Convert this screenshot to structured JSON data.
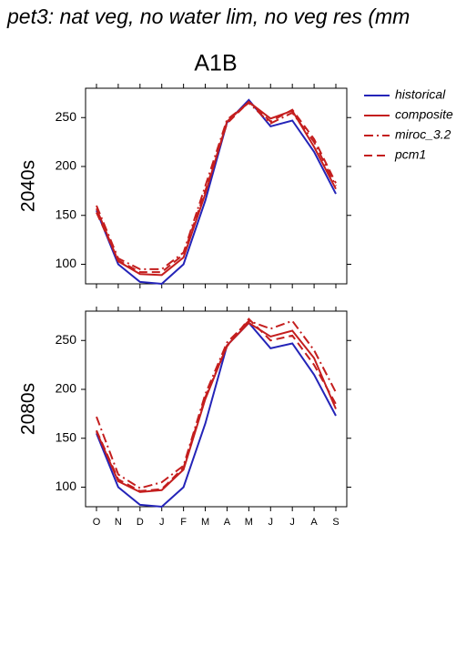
{
  "chart_data": [
    {
      "type": "line",
      "title": "pet3: nat veg, no water lim, no veg res (mm",
      "subtitle": "A1B",
      "ylabel": "2040s",
      "categories": [
        null,
        null,
        null,
        null,
        null,
        null,
        null,
        null,
        null,
        null,
        null,
        null
      ],
      "ylim": [
        80,
        280
      ],
      "yticks": [
        100,
        150,
        200,
        250
      ],
      "series": [
        {
          "name": "historical",
          "color": "#2424b8",
          "dash": "solid",
          "values": [
            155,
            100,
            82,
            80,
            100,
            165,
            245,
            268,
            241,
            247,
            215,
            172
          ]
        },
        {
          "name": "composite",
          "color": "#c41e1e",
          "dash": "solid",
          "values": [
            157,
            103,
            90,
            89,
            107,
            172,
            246,
            266,
            249,
            257,
            220,
            177
          ]
        },
        {
          "name": "miroc_3.2",
          "color": "#c41e1e",
          "dash": "dashdot",
          "values": [
            160,
            106,
            95,
            95,
            112,
            180,
            248,
            265,
            244,
            255,
            225,
            180
          ]
        },
        {
          "name": "pcm1",
          "color": "#c41e1e",
          "dash": "dashed",
          "values": [
            153,
            104,
            92,
            92,
            110,
            175,
            244,
            266,
            246,
            258,
            228,
            183
          ]
        }
      ]
    },
    {
      "type": "line",
      "ylabel": "2080s",
      "categories": [
        "O",
        "N",
        "D",
        "J",
        "F",
        "M",
        "A",
        "M",
        "J",
        "J",
        "A",
        "S"
      ],
      "ylim": [
        80,
        280
      ],
      "yticks": [
        100,
        150,
        200,
        250
      ],
      "series": [
        {
          "color": "#2424b8",
          "dash": "solid",
          "values": [
            155,
            100,
            82,
            80,
            100,
            165,
            245,
            268,
            242,
            247,
            215,
            173
          ]
        },
        {
          "color": "#c41e1e",
          "dash": "solid",
          "values": [
            157,
            106,
            95,
            97,
            118,
            190,
            245,
            268,
            254,
            260,
            232,
            180
          ]
        },
        {
          "color": "#c41e1e",
          "dash": "dashdot",
          "values": [
            172,
            113,
            99,
            105,
            122,
            195,
            248,
            270,
            262,
            270,
            240,
            197
          ]
        },
        {
          "color": "#c41e1e",
          "dash": "dashed",
          "values": [
            158,
            108,
            96,
            98,
            120,
            192,
            244,
            272,
            250,
            255,
            225,
            185
          ]
        }
      ]
    }
  ]
}
